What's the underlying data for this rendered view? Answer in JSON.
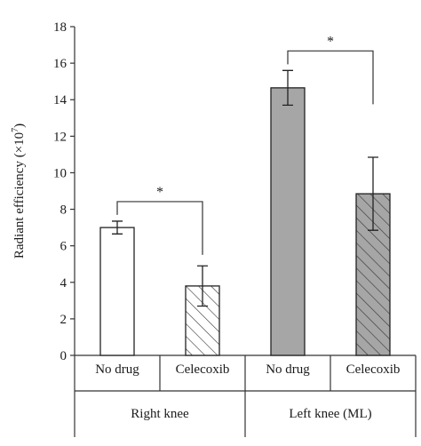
{
  "chart_data": {
    "type": "bar",
    "ylabel": "Radiant efficiency (×10",
    "ylabel_exponent": "7",
    "ylabel_close": ")",
    "ylim": [
      0,
      18
    ],
    "yticks": [
      0,
      2,
      4,
      6,
      8,
      10,
      12,
      14,
      16,
      18
    ],
    "grid": false,
    "groups": [
      {
        "label": "Right knee",
        "bars": [
          {
            "category": "No drug",
            "value": 7.0,
            "error": 0.35,
            "fill": "#ffffff",
            "pattern": "none"
          },
          {
            "category": "Celecoxib",
            "value": 3.8,
            "error": 1.1,
            "fill": "#ffffff",
            "pattern": "hatch"
          }
        ],
        "significance": "*"
      },
      {
        "label": "Left knee (ML)",
        "bars": [
          {
            "category": "No drug",
            "value": 14.65,
            "error": 0.95,
            "fill": "#a6a6a6",
            "pattern": "none"
          },
          {
            "category": "Celecoxib",
            "value": 8.85,
            "error": 2.0,
            "fill": "#a6a6a6",
            "pattern": "hatch"
          }
        ],
        "significance": "*"
      }
    ]
  }
}
